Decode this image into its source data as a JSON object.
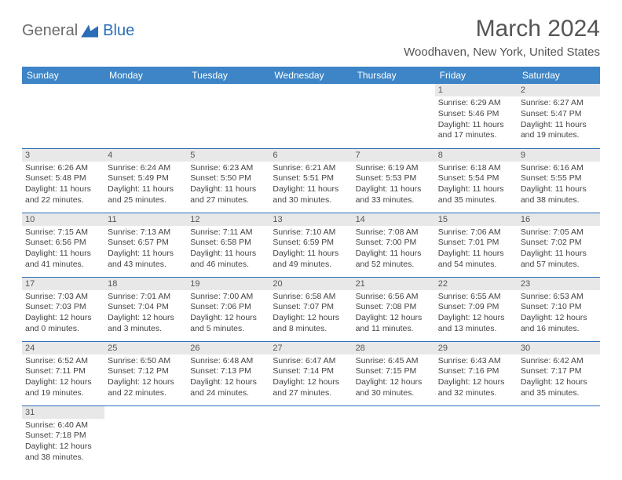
{
  "logo": {
    "part1": "General",
    "part2": "Blue"
  },
  "header": {
    "title": "March 2024",
    "location": "Woodhaven, New York, United States"
  },
  "colors": {
    "header_bg": "#3d85c6",
    "border": "#2a6db8",
    "daynum_bg": "#e8e8e8"
  },
  "weekdays": [
    "Sunday",
    "Monday",
    "Tuesday",
    "Wednesday",
    "Thursday",
    "Friday",
    "Saturday"
  ],
  "weeks": [
    [
      {
        "empty": true
      },
      {
        "empty": true
      },
      {
        "empty": true
      },
      {
        "empty": true
      },
      {
        "empty": true
      },
      {
        "day": "1",
        "sunrise": "Sunrise: 6:29 AM",
        "sunset": "Sunset: 5:46 PM",
        "daylight": "Daylight: 11 hours and 17 minutes."
      },
      {
        "day": "2",
        "sunrise": "Sunrise: 6:27 AM",
        "sunset": "Sunset: 5:47 PM",
        "daylight": "Daylight: 11 hours and 19 minutes."
      }
    ],
    [
      {
        "day": "3",
        "sunrise": "Sunrise: 6:26 AM",
        "sunset": "Sunset: 5:48 PM",
        "daylight": "Daylight: 11 hours and 22 minutes."
      },
      {
        "day": "4",
        "sunrise": "Sunrise: 6:24 AM",
        "sunset": "Sunset: 5:49 PM",
        "daylight": "Daylight: 11 hours and 25 minutes."
      },
      {
        "day": "5",
        "sunrise": "Sunrise: 6:23 AM",
        "sunset": "Sunset: 5:50 PM",
        "daylight": "Daylight: 11 hours and 27 minutes."
      },
      {
        "day": "6",
        "sunrise": "Sunrise: 6:21 AM",
        "sunset": "Sunset: 5:51 PM",
        "daylight": "Daylight: 11 hours and 30 minutes."
      },
      {
        "day": "7",
        "sunrise": "Sunrise: 6:19 AM",
        "sunset": "Sunset: 5:53 PM",
        "daylight": "Daylight: 11 hours and 33 minutes."
      },
      {
        "day": "8",
        "sunrise": "Sunrise: 6:18 AM",
        "sunset": "Sunset: 5:54 PM",
        "daylight": "Daylight: 11 hours and 35 minutes."
      },
      {
        "day": "9",
        "sunrise": "Sunrise: 6:16 AM",
        "sunset": "Sunset: 5:55 PM",
        "daylight": "Daylight: 11 hours and 38 minutes."
      }
    ],
    [
      {
        "day": "10",
        "sunrise": "Sunrise: 7:15 AM",
        "sunset": "Sunset: 6:56 PM",
        "daylight": "Daylight: 11 hours and 41 minutes."
      },
      {
        "day": "11",
        "sunrise": "Sunrise: 7:13 AM",
        "sunset": "Sunset: 6:57 PM",
        "daylight": "Daylight: 11 hours and 43 minutes."
      },
      {
        "day": "12",
        "sunrise": "Sunrise: 7:11 AM",
        "sunset": "Sunset: 6:58 PM",
        "daylight": "Daylight: 11 hours and 46 minutes."
      },
      {
        "day": "13",
        "sunrise": "Sunrise: 7:10 AM",
        "sunset": "Sunset: 6:59 PM",
        "daylight": "Daylight: 11 hours and 49 minutes."
      },
      {
        "day": "14",
        "sunrise": "Sunrise: 7:08 AM",
        "sunset": "Sunset: 7:00 PM",
        "daylight": "Daylight: 11 hours and 52 minutes."
      },
      {
        "day": "15",
        "sunrise": "Sunrise: 7:06 AM",
        "sunset": "Sunset: 7:01 PM",
        "daylight": "Daylight: 11 hours and 54 minutes."
      },
      {
        "day": "16",
        "sunrise": "Sunrise: 7:05 AM",
        "sunset": "Sunset: 7:02 PM",
        "daylight": "Daylight: 11 hours and 57 minutes."
      }
    ],
    [
      {
        "day": "17",
        "sunrise": "Sunrise: 7:03 AM",
        "sunset": "Sunset: 7:03 PM",
        "daylight": "Daylight: 12 hours and 0 minutes."
      },
      {
        "day": "18",
        "sunrise": "Sunrise: 7:01 AM",
        "sunset": "Sunset: 7:04 PM",
        "daylight": "Daylight: 12 hours and 3 minutes."
      },
      {
        "day": "19",
        "sunrise": "Sunrise: 7:00 AM",
        "sunset": "Sunset: 7:06 PM",
        "daylight": "Daylight: 12 hours and 5 minutes."
      },
      {
        "day": "20",
        "sunrise": "Sunrise: 6:58 AM",
        "sunset": "Sunset: 7:07 PM",
        "daylight": "Daylight: 12 hours and 8 minutes."
      },
      {
        "day": "21",
        "sunrise": "Sunrise: 6:56 AM",
        "sunset": "Sunset: 7:08 PM",
        "daylight": "Daylight: 12 hours and 11 minutes."
      },
      {
        "day": "22",
        "sunrise": "Sunrise: 6:55 AM",
        "sunset": "Sunset: 7:09 PM",
        "daylight": "Daylight: 12 hours and 13 minutes."
      },
      {
        "day": "23",
        "sunrise": "Sunrise: 6:53 AM",
        "sunset": "Sunset: 7:10 PM",
        "daylight": "Daylight: 12 hours and 16 minutes."
      }
    ],
    [
      {
        "day": "24",
        "sunrise": "Sunrise: 6:52 AM",
        "sunset": "Sunset: 7:11 PM",
        "daylight": "Daylight: 12 hours and 19 minutes."
      },
      {
        "day": "25",
        "sunrise": "Sunrise: 6:50 AM",
        "sunset": "Sunset: 7:12 PM",
        "daylight": "Daylight: 12 hours and 22 minutes."
      },
      {
        "day": "26",
        "sunrise": "Sunrise: 6:48 AM",
        "sunset": "Sunset: 7:13 PM",
        "daylight": "Daylight: 12 hours and 24 minutes."
      },
      {
        "day": "27",
        "sunrise": "Sunrise: 6:47 AM",
        "sunset": "Sunset: 7:14 PM",
        "daylight": "Daylight: 12 hours and 27 minutes."
      },
      {
        "day": "28",
        "sunrise": "Sunrise: 6:45 AM",
        "sunset": "Sunset: 7:15 PM",
        "daylight": "Daylight: 12 hours and 30 minutes."
      },
      {
        "day": "29",
        "sunrise": "Sunrise: 6:43 AM",
        "sunset": "Sunset: 7:16 PM",
        "daylight": "Daylight: 12 hours and 32 minutes."
      },
      {
        "day": "30",
        "sunrise": "Sunrise: 6:42 AM",
        "sunset": "Sunset: 7:17 PM",
        "daylight": "Daylight: 12 hours and 35 minutes."
      }
    ],
    [
      {
        "day": "31",
        "sunrise": "Sunrise: 6:40 AM",
        "sunset": "Sunset: 7:18 PM",
        "daylight": "Daylight: 12 hours and 38 minutes."
      },
      {
        "empty": true
      },
      {
        "empty": true
      },
      {
        "empty": true
      },
      {
        "empty": true
      },
      {
        "empty": true
      },
      {
        "empty": true
      }
    ]
  ]
}
